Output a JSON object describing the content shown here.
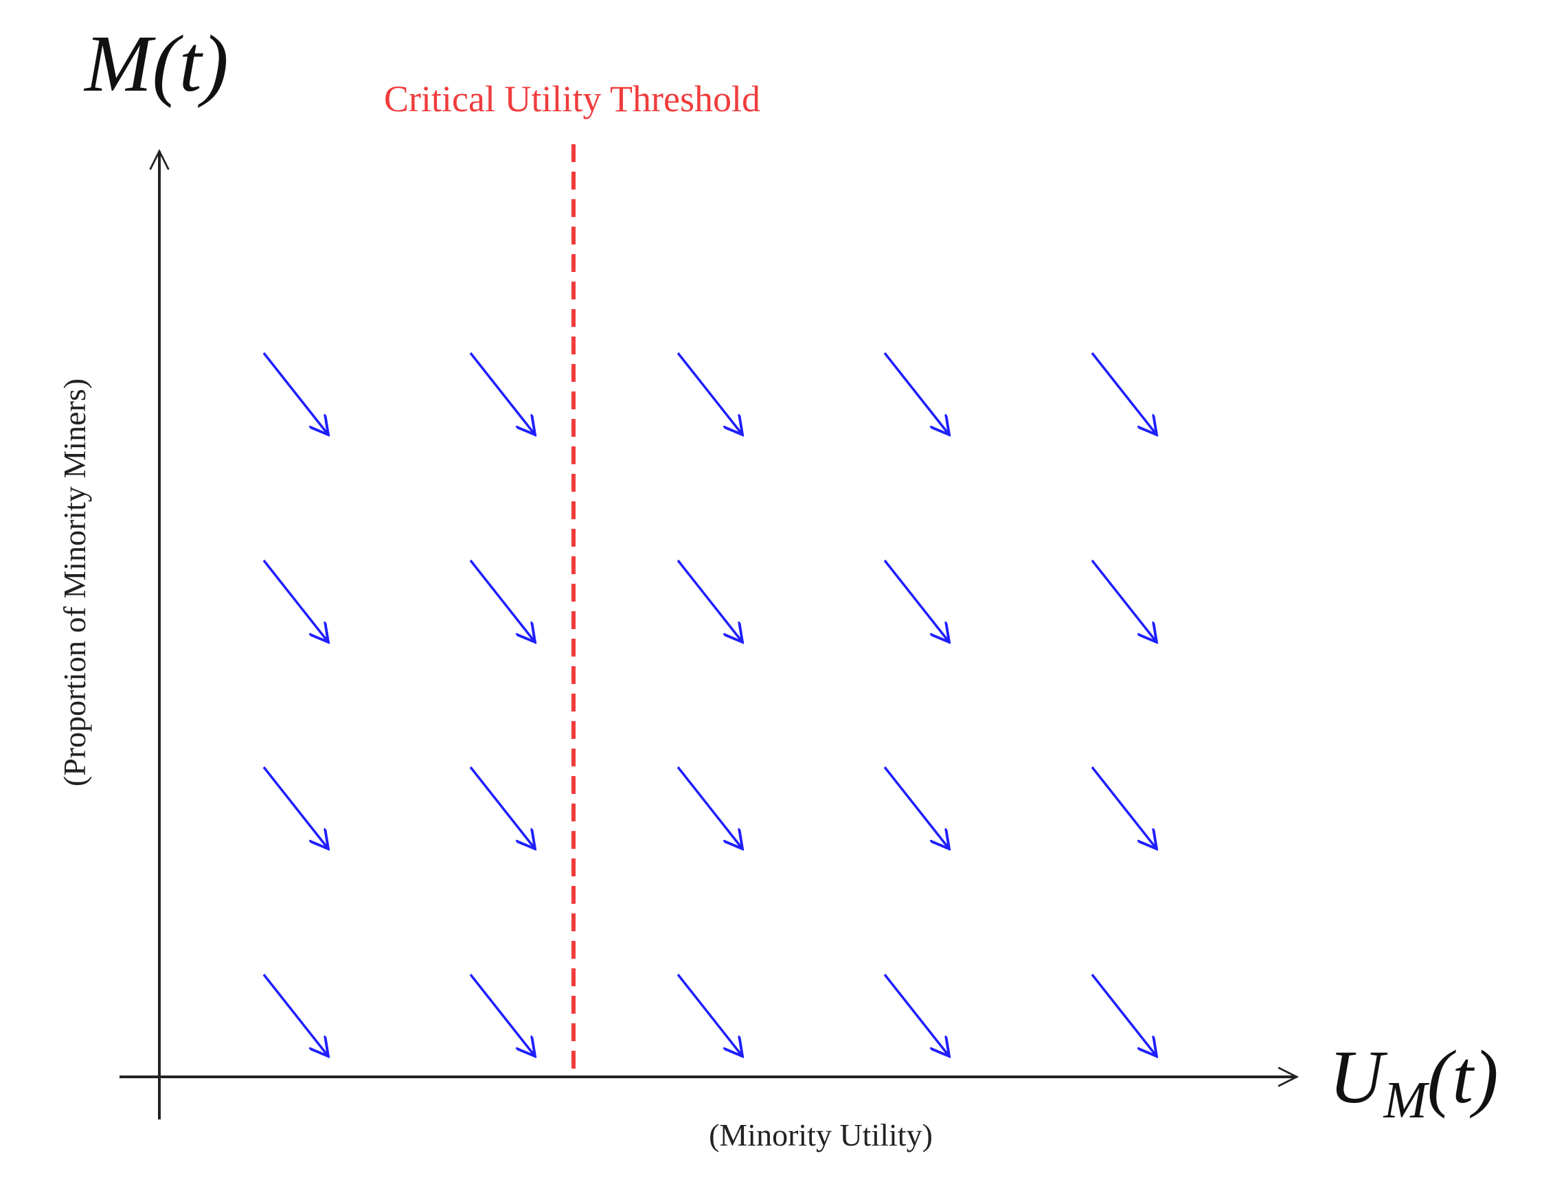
{
  "y_axis": {
    "symbol": "M(t)",
    "label": "(Proportion of Minority Miners)"
  },
  "x_axis": {
    "symbol": {
      "main": "U",
      "sub": "M",
      "arg": "(t)"
    },
    "label": "(Minority Utility)"
  },
  "threshold": {
    "label": "Critical Utility Threshold"
  }
}
